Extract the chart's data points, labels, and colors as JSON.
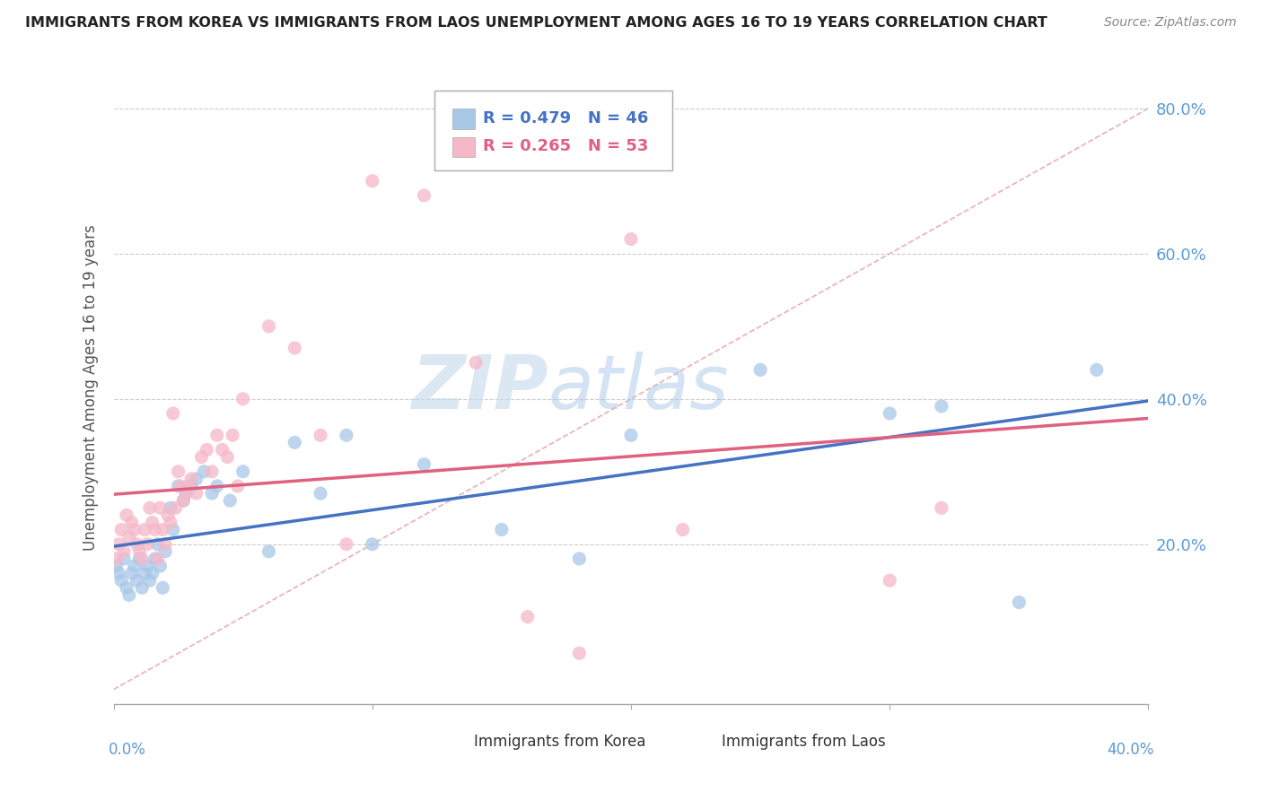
{
  "title": "IMMIGRANTS FROM KOREA VS IMMIGRANTS FROM LAOS UNEMPLOYMENT AMONG AGES 16 TO 19 YEARS CORRELATION CHART",
  "source": "Source: ZipAtlas.com",
  "ylabel": "Unemployment Among Ages 16 to 19 years",
  "xlim": [
    0.0,
    0.4
  ],
  "ylim": [
    -0.02,
    0.85
  ],
  "korea_R": 0.479,
  "korea_N": 46,
  "laos_R": 0.265,
  "laos_N": 53,
  "korea_color": "#a8c8e8",
  "laos_color": "#f5b8c8",
  "korea_line_color": "#4472c4",
  "laos_line_color": "#e06080",
  "ref_line_color": "#e8b0b8",
  "background_color": "#ffffff",
  "korea_x": [
    0.001,
    0.002,
    0.003,
    0.004,
    0.005,
    0.006,
    0.007,
    0.008,
    0.009,
    0.01,
    0.011,
    0.012,
    0.013,
    0.014,
    0.015,
    0.016,
    0.017,
    0.018,
    0.019,
    0.02,
    0.022,
    0.023,
    0.025,
    0.027,
    0.028,
    0.03,
    0.032,
    0.035,
    0.038,
    0.04,
    0.045,
    0.05,
    0.06,
    0.07,
    0.08,
    0.09,
    0.1,
    0.12,
    0.15,
    0.18,
    0.2,
    0.25,
    0.3,
    0.32,
    0.35,
    0.38
  ],
  "korea_y": [
    0.17,
    0.16,
    0.15,
    0.18,
    0.14,
    0.13,
    0.16,
    0.17,
    0.15,
    0.18,
    0.14,
    0.16,
    0.17,
    0.15,
    0.16,
    0.18,
    0.2,
    0.17,
    0.14,
    0.19,
    0.25,
    0.22,
    0.28,
    0.26,
    0.27,
    0.28,
    0.29,
    0.3,
    0.27,
    0.28,
    0.26,
    0.3,
    0.19,
    0.34,
    0.27,
    0.35,
    0.2,
    0.31,
    0.22,
    0.18,
    0.35,
    0.44,
    0.38,
    0.39,
    0.12,
    0.44
  ],
  "laos_x": [
    0.001,
    0.002,
    0.003,
    0.004,
    0.005,
    0.006,
    0.007,
    0.008,
    0.009,
    0.01,
    0.011,
    0.012,
    0.013,
    0.014,
    0.015,
    0.016,
    0.017,
    0.018,
    0.019,
    0.02,
    0.021,
    0.022,
    0.023,
    0.024,
    0.025,
    0.026,
    0.027,
    0.028,
    0.029,
    0.03,
    0.032,
    0.034,
    0.036,
    0.038,
    0.04,
    0.042,
    0.044,
    0.046,
    0.048,
    0.05,
    0.06,
    0.07,
    0.08,
    0.09,
    0.1,
    0.12,
    0.14,
    0.16,
    0.18,
    0.2,
    0.22,
    0.3,
    0.32
  ],
  "laos_y": [
    0.18,
    0.2,
    0.22,
    0.19,
    0.24,
    0.21,
    0.23,
    0.22,
    0.2,
    0.19,
    0.18,
    0.22,
    0.2,
    0.25,
    0.23,
    0.22,
    0.18,
    0.25,
    0.22,
    0.2,
    0.24,
    0.23,
    0.38,
    0.25,
    0.3,
    0.28,
    0.26,
    0.27,
    0.28,
    0.29,
    0.27,
    0.32,
    0.33,
    0.3,
    0.35,
    0.33,
    0.32,
    0.35,
    0.28,
    0.4,
    0.5,
    0.47,
    0.35,
    0.2,
    0.7,
    0.68,
    0.45,
    0.1,
    0.05,
    0.62,
    0.22,
    0.15,
    0.25
  ]
}
